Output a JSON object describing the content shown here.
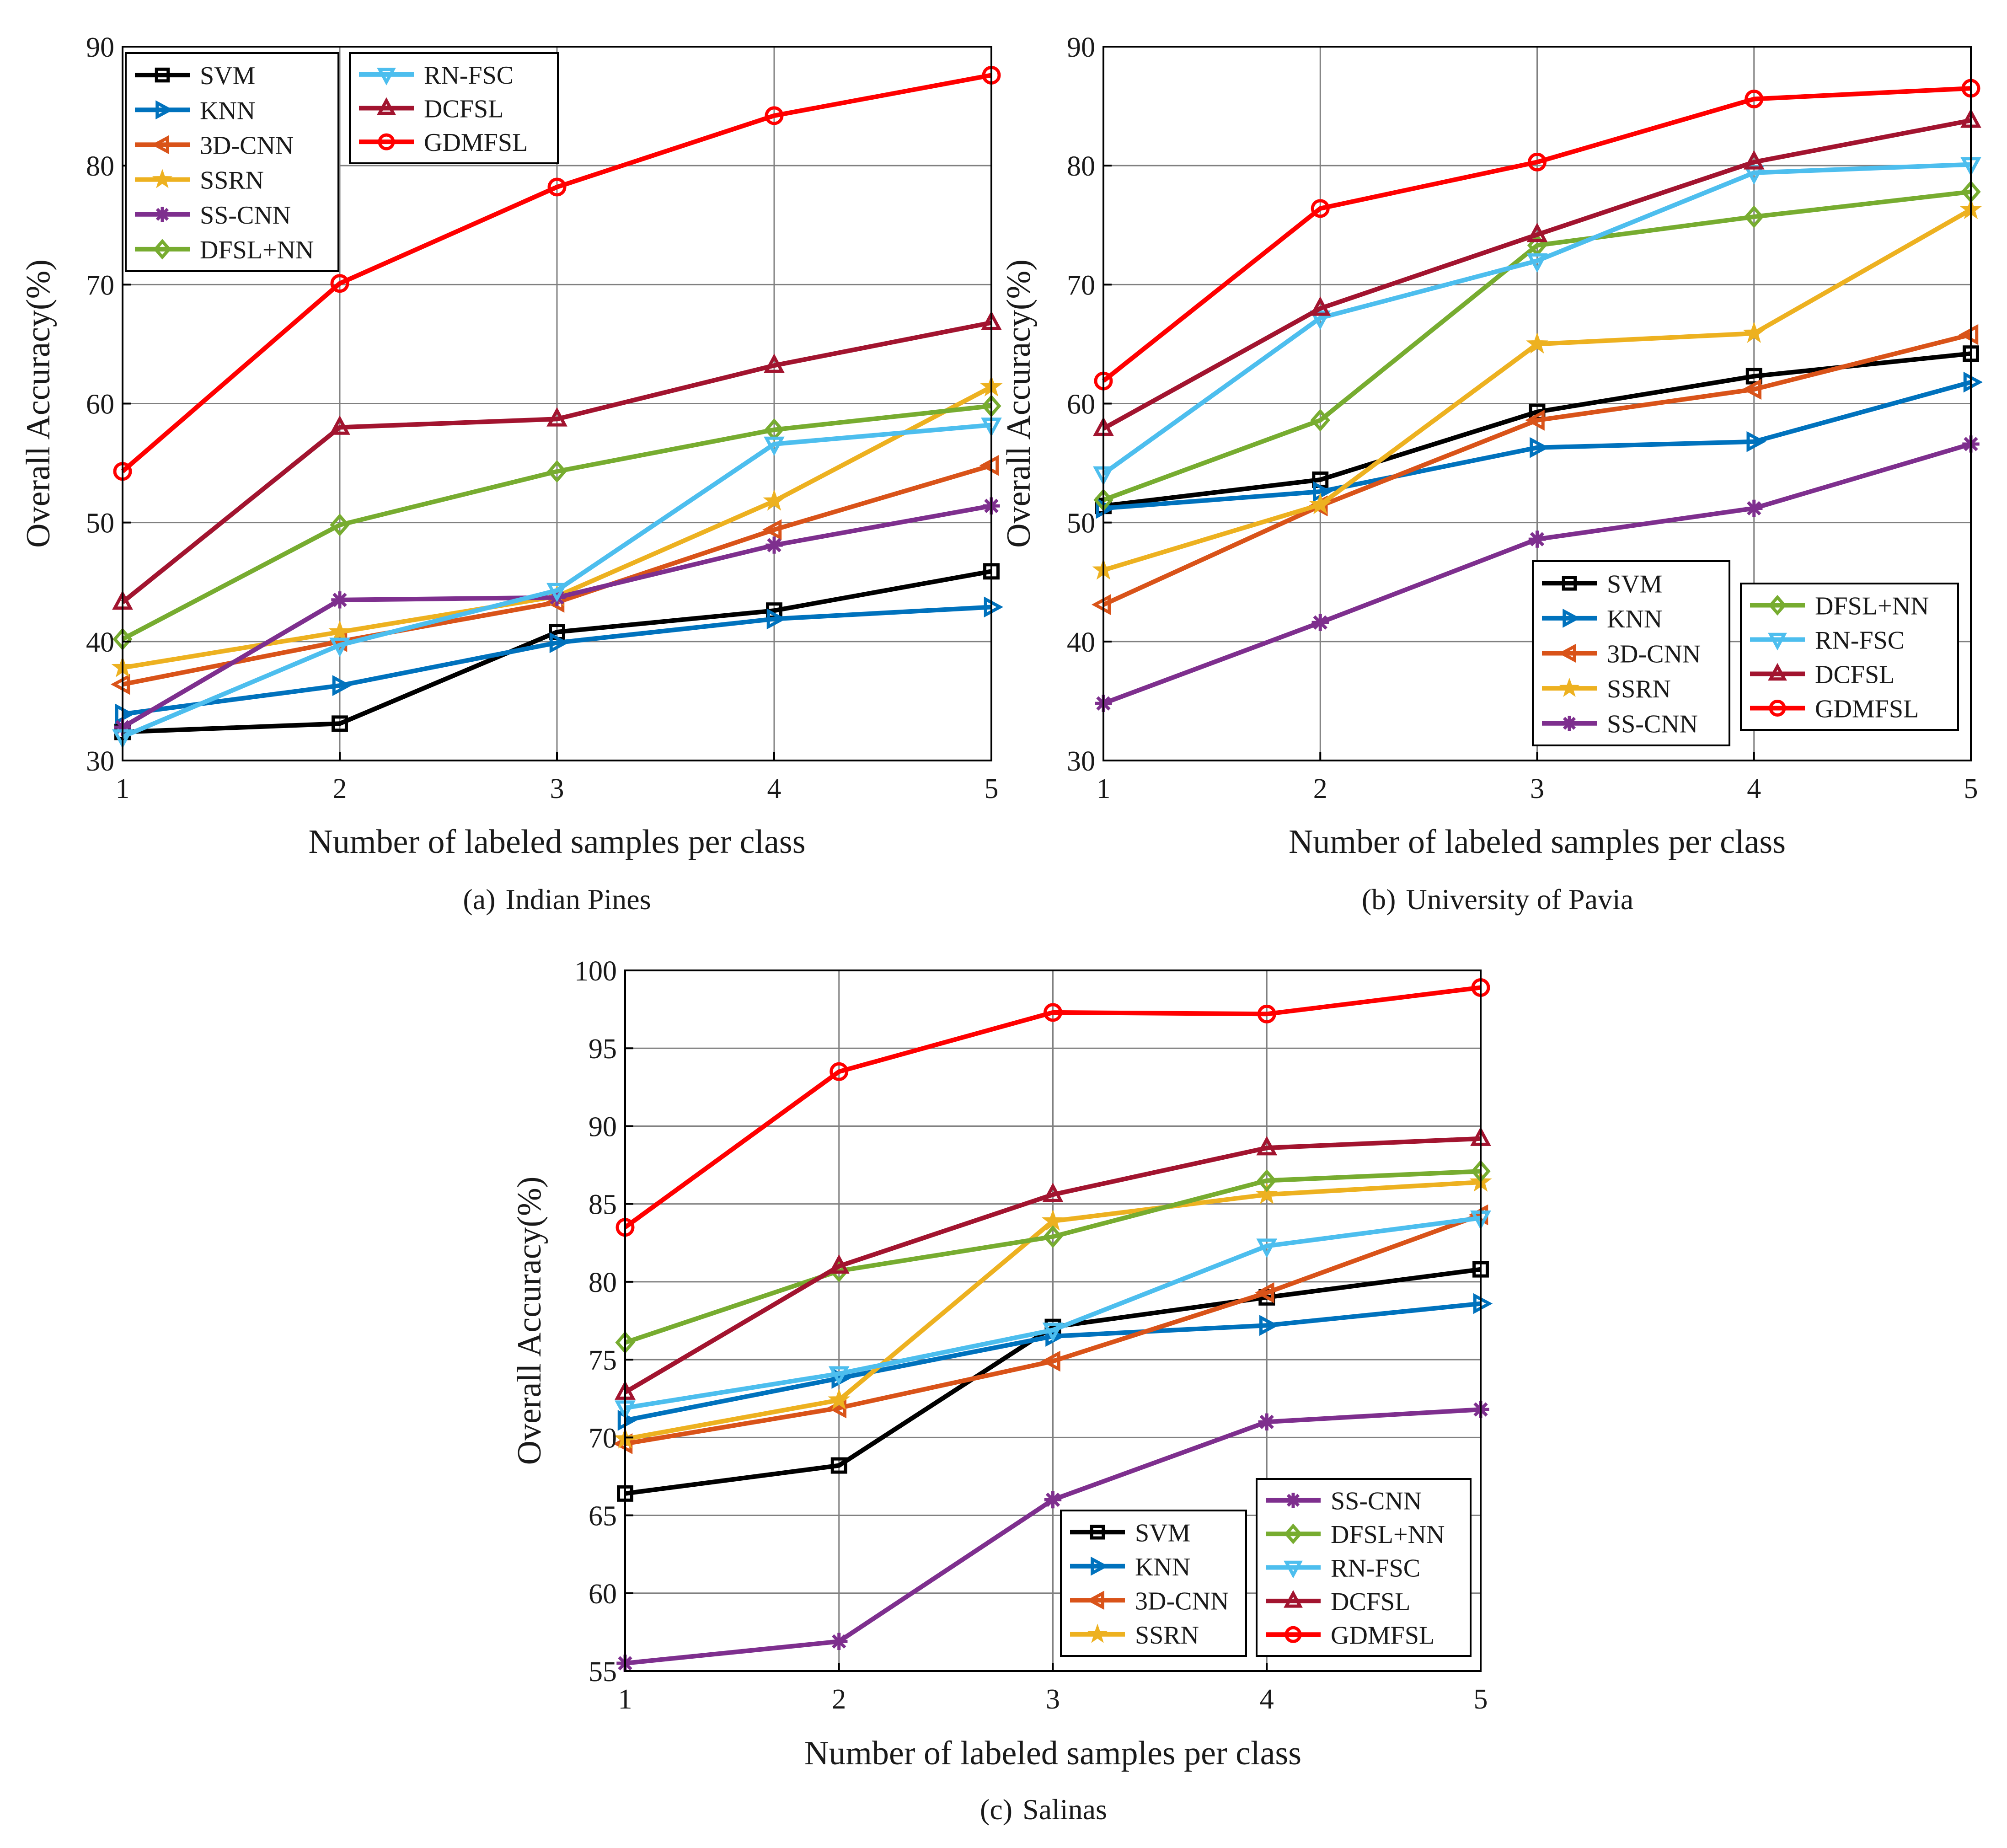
{
  "series_styles": {
    "SVM": {
      "color": "#000000",
      "marker": "square"
    },
    "KNN": {
      "color": "#0072BD",
      "marker": "triangle-right"
    },
    "3D-CNN": {
      "color": "#D95319",
      "marker": "triangle-left"
    },
    "SSRN": {
      "color": "#EDB120",
      "marker": "star"
    },
    "SS-CNN": {
      "color": "#7E2F8E",
      "marker": "asterisk"
    },
    "DFSL+NN": {
      "color": "#77AC30",
      "marker": "diamond"
    },
    "RN-FSC": {
      "color": "#4DBEEE",
      "marker": "triangle-down"
    },
    "DCFSL": {
      "color": "#A2142F",
      "marker": "triangle-up"
    },
    "GDMFSL": {
      "color": "#FF0000",
      "marker": "circle"
    }
  },
  "chart_data": [
    {
      "type": "line",
      "caption_letter": "(a)",
      "caption_text": "Indian Pines",
      "xlabel": "Number of labeled samples per class",
      "ylabel": "Overall Accuracy(%)",
      "x": [
        1,
        2,
        3,
        4,
        5
      ],
      "xlim": [
        1,
        5
      ],
      "ylim": [
        30,
        90
      ],
      "yticks": [
        30,
        40,
        50,
        60,
        70,
        80,
        90
      ],
      "grid": true,
      "legend_position": "top-left",
      "legend_columns": [
        [
          "SVM",
          "KNN",
          "3D-CNN",
          "SSRN",
          "SS-CNN",
          "DFSL+NN"
        ],
        [
          "RN-FSC",
          "DCFSL",
          "GDMFSL"
        ]
      ],
      "series": [
        {
          "name": "SVM",
          "values": [
            32.4,
            33.1,
            40.8,
            42.6,
            45.9
          ]
        },
        {
          "name": "KNN",
          "values": [
            33.9,
            36.3,
            39.9,
            41.9,
            42.9
          ]
        },
        {
          "name": "3D-CNN",
          "values": [
            36.4,
            40.0,
            43.3,
            49.4,
            54.8
          ]
        },
        {
          "name": "SSRN",
          "values": [
            37.8,
            40.8,
            43.8,
            51.8,
            61.4
          ]
        },
        {
          "name": "SS-CNN",
          "values": [
            32.8,
            43.5,
            43.7,
            48.1,
            51.4
          ]
        },
        {
          "name": "DFSL+NN",
          "values": [
            40.2,
            49.8,
            54.3,
            57.8,
            59.8
          ]
        },
        {
          "name": "RN-FSC",
          "values": [
            32.0,
            39.7,
            44.3,
            56.6,
            58.2
          ]
        },
        {
          "name": "DCFSL",
          "values": [
            43.3,
            58.0,
            58.7,
            63.2,
            66.8
          ]
        },
        {
          "name": "GDMFSL",
          "values": [
            54.3,
            70.1,
            78.2,
            84.2,
            87.6
          ]
        }
      ]
    },
    {
      "type": "line",
      "caption_letter": "(b)",
      "caption_text": "University of Pavia",
      "xlabel": "Number of labeled samples per class",
      "ylabel": "Overall Accuracy(%)",
      "x": [
        1,
        2,
        3,
        4,
        5
      ],
      "xlim": [
        1,
        5
      ],
      "ylim": [
        30,
        90
      ],
      "yticks": [
        30,
        40,
        50,
        60,
        70,
        80,
        90
      ],
      "grid": true,
      "legend_position": "bottom-right",
      "legend_columns": [
        [
          "SVM",
          "KNN",
          "3D-CNN",
          "SSRN",
          "SS-CNN"
        ],
        [
          "DFSL+NN",
          "RN-FSC",
          "DCFSL",
          "GDMFSL"
        ]
      ],
      "series": [
        {
          "name": "SVM",
          "values": [
            51.4,
            53.6,
            59.3,
            62.3,
            64.2
          ]
        },
        {
          "name": "KNN",
          "values": [
            51.2,
            52.6,
            56.3,
            56.8,
            61.8
          ]
        },
        {
          "name": "3D-CNN",
          "values": [
            43.1,
            51.4,
            58.6,
            61.2,
            65.8
          ]
        },
        {
          "name": "SSRN",
          "values": [
            46.0,
            51.5,
            65.0,
            65.9,
            76.3
          ]
        },
        {
          "name": "SS-CNN",
          "values": [
            34.8,
            41.6,
            48.6,
            51.2,
            56.6
          ]
        },
        {
          "name": "DFSL+NN",
          "values": [
            51.9,
            58.6,
            73.3,
            75.7,
            77.8
          ]
        },
        {
          "name": "RN-FSC",
          "values": [
            54.1,
            67.2,
            72.0,
            79.4,
            80.1
          ]
        },
        {
          "name": "DCFSL",
          "values": [
            57.9,
            68.0,
            74.2,
            80.3,
            83.8
          ]
        },
        {
          "name": "GDMFSL",
          "values": [
            61.9,
            76.4,
            80.3,
            85.6,
            86.5
          ]
        }
      ]
    },
    {
      "type": "line",
      "caption_letter": "(c)",
      "caption_text": "Salinas",
      "xlabel": "Number of labeled samples per class",
      "ylabel": "Overall Accuracy(%)",
      "x": [
        1,
        2,
        3,
        4,
        5
      ],
      "xlim": [
        1,
        5
      ],
      "ylim": [
        55,
        100
      ],
      "yticks": [
        55,
        60,
        65,
        70,
        75,
        80,
        85,
        90,
        95,
        100
      ],
      "grid": true,
      "legend_position": "bottom-right",
      "legend_columns": [
        [
          "SVM",
          "KNN",
          "3D-CNN",
          "SSRN"
        ],
        [
          "SS-CNN",
          "DFSL+NN",
          "RN-FSC",
          "DCFSL",
          "GDMFSL"
        ]
      ],
      "series": [
        {
          "name": "SVM",
          "values": [
            66.4,
            68.2,
            77.1,
            79.0,
            80.8
          ]
        },
        {
          "name": "KNN",
          "values": [
            71.1,
            73.8,
            76.5,
            77.2,
            78.6
          ]
        },
        {
          "name": "3D-CNN",
          "values": [
            69.6,
            71.9,
            74.9,
            79.3,
            84.3
          ]
        },
        {
          "name": "SSRN",
          "values": [
            69.9,
            72.4,
            83.9,
            85.6,
            86.4
          ]
        },
        {
          "name": "SS-CNN",
          "values": [
            55.5,
            56.9,
            66.0,
            71.0,
            71.8
          ]
        },
        {
          "name": "DFSL+NN",
          "values": [
            76.1,
            80.7,
            82.9,
            86.5,
            87.1
          ]
        },
        {
          "name": "RN-FSC",
          "values": [
            71.9,
            74.1,
            76.9,
            82.3,
            84.1
          ]
        },
        {
          "name": "DCFSL",
          "values": [
            72.9,
            81.0,
            85.6,
            88.6,
            89.2
          ]
        },
        {
          "name": "GDMFSL",
          "values": [
            83.5,
            93.5,
            97.3,
            97.2,
            98.9
          ]
        }
      ]
    }
  ]
}
